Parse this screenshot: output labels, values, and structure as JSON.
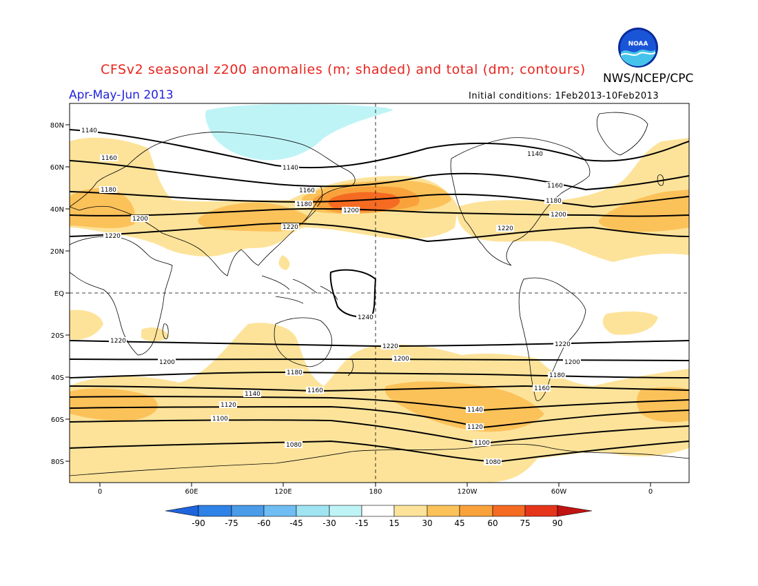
{
  "title": "CFSv2 seasonal z200 anomalies (m; shaded) and total (dm; contours)",
  "organization": "NWS/NCEP/CPC",
  "season": "Apr-May-Jun 2013",
  "initial_conditions": "Initial conditions: 1Feb2013-10Feb2013",
  "logo_text": "NOAA",
  "latitude_labels": [
    "80N",
    "60N",
    "40N",
    "20N",
    "EQ",
    "20S",
    "40S",
    "60S",
    "80S"
  ],
  "longitude_labels": [
    "0",
    "60E",
    "120E",
    "180",
    "120W",
    "60W",
    "0"
  ],
  "colorbar": {
    "labels": [
      "-90",
      "-75",
      "-60",
      "-45",
      "-30",
      "-15",
      "15",
      "30",
      "45",
      "60",
      "75",
      "90"
    ],
    "colors": [
      "#1e64dc",
      "#2f82e6",
      "#4a9be8",
      "#6fbdf2",
      "#a0e4f2",
      "#bff4f6",
      "#ffffff",
      "#fde39a",
      "#fcc25a",
      "#f9a23c",
      "#f56b22",
      "#e5351b",
      "#c01412"
    ]
  },
  "contour_labels": {
    "c1140": "1140",
    "c1160": "1160",
    "c1180": "1180",
    "c1200": "1200",
    "c1220": "1220",
    "c1240": "1240",
    "c1120": "1120",
    "c1100": "1100",
    "c1080": "1080"
  },
  "colors": {
    "title": "#e8241d",
    "season": "#2222dd",
    "anomaly_15_30": "#fde39a",
    "anomaly_30_45": "#fcc25a",
    "anomaly_45_60": "#f9a23c",
    "anomaly_60_75": "#f56b22",
    "anomaly_neg": "#bff4f6"
  }
}
